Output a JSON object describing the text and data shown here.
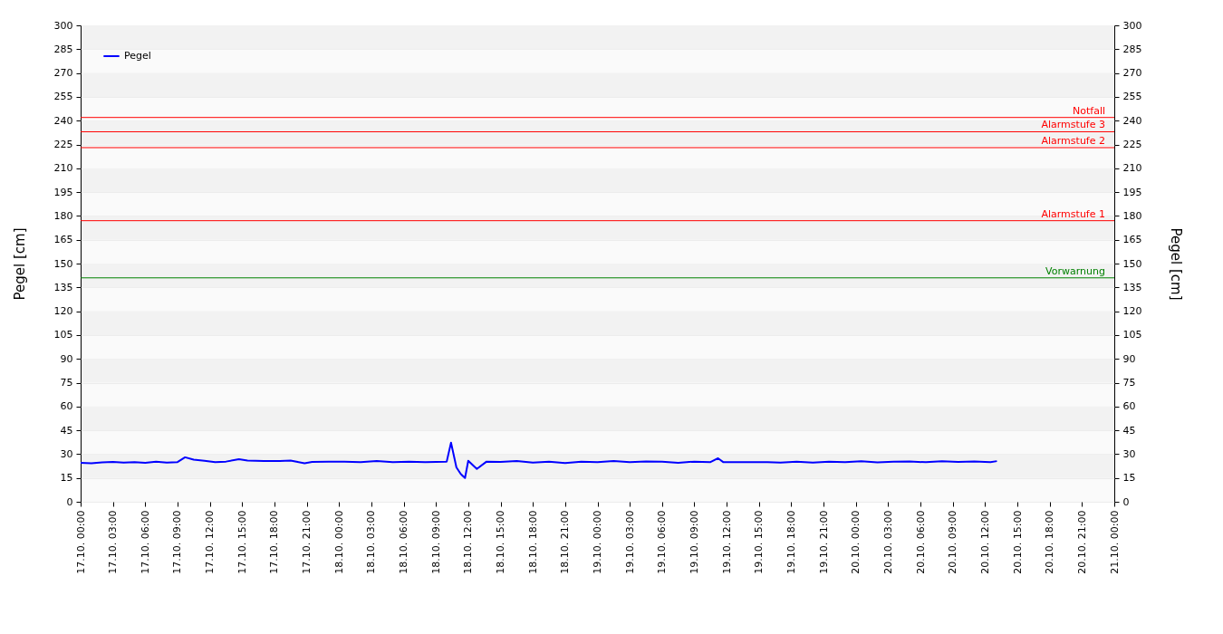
{
  "chart_data": {
    "type": "line",
    "ylabel": "Pegel [cm]",
    "y2label": "Pegel [cm]",
    "xlim": [
      "--10-17T00:00",
      "--10-21T00:00"
    ],
    "ylim": [
      0,
      300
    ],
    "y2lim": [
      0,
      300
    ],
    "xticks": [
      {
        "value": "--10-17T00:00",
        "label": "17.10. 00:00"
      },
      {
        "value": "--10-17T03:00",
        "label": "17.10. 03:00"
      },
      {
        "value": "--10-17T06:00",
        "label": "17.10. 06:00"
      },
      {
        "value": "--10-17T09:00",
        "label": "17.10. 09:00"
      },
      {
        "value": "--10-17T12:00",
        "label": "17.10. 12:00"
      },
      {
        "value": "--10-17T15:00",
        "label": "17.10. 15:00"
      },
      {
        "value": "--10-17T18:00",
        "label": "17.10. 18:00"
      },
      {
        "value": "--10-17T21:00",
        "label": "17.10. 21:00"
      },
      {
        "value": "--10-18T00:00",
        "label": "18.10. 00:00"
      },
      {
        "value": "--10-18T03:00",
        "label": "18.10. 03:00"
      },
      {
        "value": "--10-18T06:00",
        "label": "18.10. 06:00"
      },
      {
        "value": "--10-18T09:00",
        "label": "18.10. 09:00"
      },
      {
        "value": "--10-18T12:00",
        "label": "18.10. 12:00"
      },
      {
        "value": "--10-18T15:00",
        "label": "18.10. 15:00"
      },
      {
        "value": "--10-18T18:00",
        "label": "18.10. 18:00"
      },
      {
        "value": "--10-18T21:00",
        "label": "18.10. 21:00"
      },
      {
        "value": "--10-19T00:00",
        "label": "19.10. 00:00"
      },
      {
        "value": "--10-19T03:00",
        "label": "19.10. 03:00"
      },
      {
        "value": "--10-19T06:00",
        "label": "19.10. 06:00"
      },
      {
        "value": "--10-19T09:00",
        "label": "19.10. 09:00"
      },
      {
        "value": "--10-19T12:00",
        "label": "19.10. 12:00"
      },
      {
        "value": "--10-19T15:00",
        "label": "19.10. 15:00"
      },
      {
        "value": "--10-19T18:00",
        "label": "19.10. 18:00"
      },
      {
        "value": "--10-19T21:00",
        "label": "19.10. 21:00"
      },
      {
        "value": "--10-20T00:00",
        "label": "20.10. 00:00"
      },
      {
        "value": "--10-20T03:00",
        "label": "20.10. 03:00"
      },
      {
        "value": "--10-20T06:00",
        "label": "20.10. 06:00"
      },
      {
        "value": "--10-20T09:00",
        "label": "20.10. 09:00"
      },
      {
        "value": "--10-20T12:00",
        "label": "20.10. 12:00"
      },
      {
        "value": "--10-20T15:00",
        "label": "20.10. 15:00"
      },
      {
        "value": "--10-20T18:00",
        "label": "20.10. 18:00"
      },
      {
        "value": "--10-20T21:00",
        "label": "20.10. 21:00"
      },
      {
        "value": "--10-21T00:00",
        "label": "21.10. 00:00"
      }
    ],
    "yticks": [
      0,
      15,
      30,
      45,
      60,
      75,
      90,
      105,
      120,
      135,
      150,
      165,
      180,
      195,
      210,
      225,
      240,
      255,
      270,
      285,
      300
    ],
    "y2ticks": [
      0,
      15,
      30,
      45,
      60,
      75,
      90,
      105,
      120,
      135,
      150,
      165,
      180,
      195,
      210,
      225,
      240,
      255,
      270,
      285,
      300
    ],
    "grid": "y",
    "legend": "top left",
    "line_style": "solid",
    "marker": "none",
    "ref_lines": [
      {
        "axis": "y",
        "value": 242,
        "label": "Notfall",
        "color": "#ff0000"
      },
      {
        "axis": "y",
        "value": 233,
        "label": "Alarmstufe 3",
        "color": "#ff0000"
      },
      {
        "axis": "y",
        "value": 223,
        "label": "Alarmstufe 2",
        "color": "#ff0000"
      },
      {
        "axis": "y",
        "value": 177,
        "label": "Alarmstufe 1",
        "color": "#ff0000"
      },
      {
        "axis": "y",
        "value": 141,
        "label": "Vorwarnung",
        "color": "#008000"
      }
    ],
    "series": [
      {
        "name": "Pegel",
        "color": "#0000ff",
        "x": [
          "--10-17T00:00",
          "--10-17T01:00",
          "--10-17T02:00",
          "--10-17T03:00",
          "--10-17T04:00",
          "--10-17T05:00",
          "--10-17T06:00",
          "--10-17T07:00",
          "--10-17T08:00",
          "--10-17T09:00",
          "--10-17T09:42",
          "--10-17T10:30",
          "--10-17T11:30",
          "--10-17T12:30",
          "--10-17T13:30",
          "--10-17T14:42",
          "--10-17T15:30",
          "--10-17T17:00",
          "--10-17T18:30",
          "--10-17T19:30",
          "--10-17T20:48",
          "--10-17T21:30",
          "--10-17T23:00",
          "--10-18T00:30",
          "--10-18T02:00",
          "--10-18T03:30",
          "--10-18T05:00",
          "--10-18T06:30",
          "--10-18T08:00",
          "--10-18T10:00",
          "--10-18T10:24",
          "--10-18T10:54",
          "--10-18T11:18",
          "--10-18T11:42",
          "--10-18T12:00",
          "--10-18T12:48",
          "--10-18T13:42",
          "--10-18T15:00",
          "--10-18T16:30",
          "--10-18T18:00",
          "--10-18T19:30",
          "--10-18T21:00",
          "--10-18T22:30",
          "--10-19T00:00",
          "--10-19T01:30",
          "--10-19T03:00",
          "--10-19T04:30",
          "--10-19T06:00",
          "--10-19T07:30",
          "--10-19T09:00",
          "--10-19T10:30",
          "--10-19T11:12",
          "--10-19T11:42",
          "--10-19T15:48",
          "--10-19T17:00",
          "--10-19T18:30",
          "--10-19T20:00",
          "--10-19T21:30",
          "--10-19T23:00",
          "--10-20T00:30",
          "--10-20T02:00",
          "--10-20T03:30",
          "--10-20T05:00",
          "--10-20T06:30",
          "--10-20T08:00",
          "--10-20T09:30",
          "--10-20T11:00",
          "--10-20T12:30",
          "--10-20T13:06"
        ],
        "values": [
          24.5,
          24.2,
          24.8,
          25.1,
          24.6,
          25,
          24.5,
          25.3,
          24.6,
          25,
          28,
          26.5,
          25.8,
          24.9,
          25.3,
          26.8,
          26,
          25.6,
          25.7,
          25.9,
          24.3,
          25.1,
          25.2,
          25.3,
          25,
          25.6,
          24.9,
          25.3,
          25,
          25.3,
          37.2,
          21.7,
          17.5,
          15,
          25.8,
          20.7,
          25.3,
          25.1,
          25.6,
          24.6,
          25.3,
          24.4,
          25.3,
          25,
          25.6,
          24.9,
          25.4,
          25.2,
          24.5,
          25.3,
          25,
          27.4,
          24.9,
          24.9,
          24.6,
          25.3,
          24.7,
          25.2,
          25,
          25.5,
          24.8,
          25.2,
          25.4,
          24.9,
          25.5,
          25.1,
          25.4,
          24.9,
          25.6
        ]
      }
    ]
  }
}
